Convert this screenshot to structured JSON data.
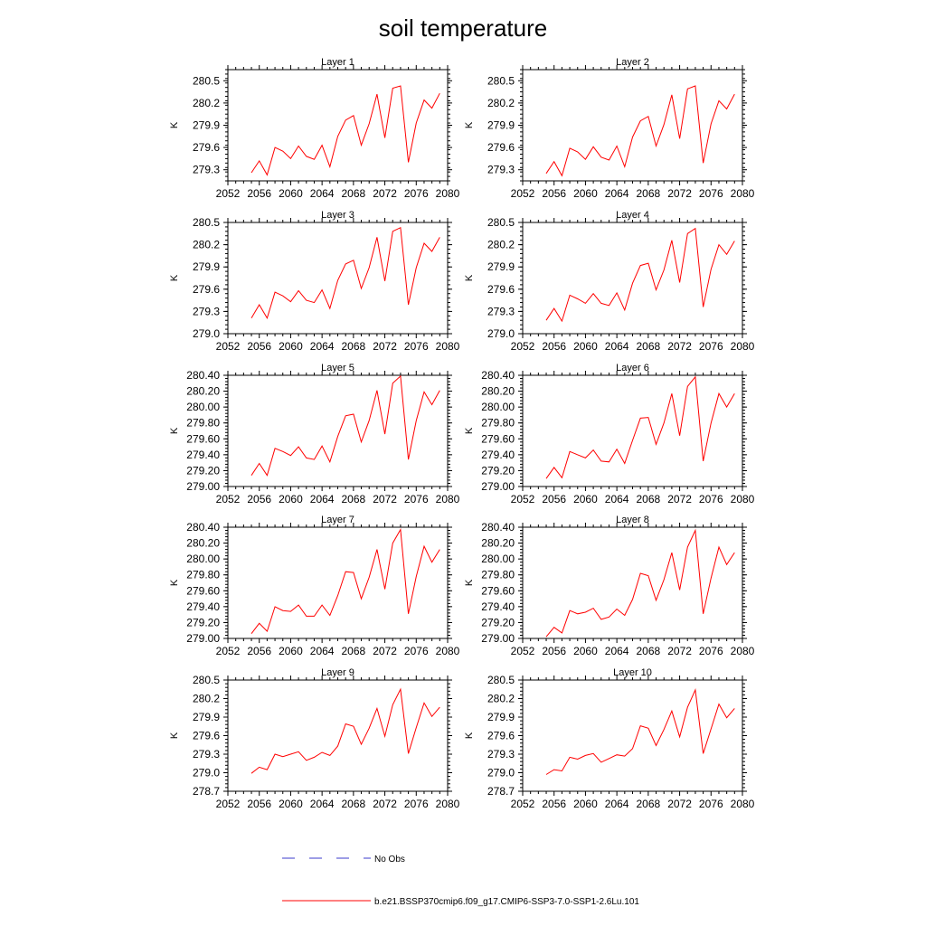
{
  "figure": {
    "title": "soil temperature",
    "legend": [
      {
        "label": "No Obs",
        "color": "#3b3bcc",
        "dash": true
      },
      {
        "label": "b.e21.BSSP370cmip6.f09_g17.CMIP6-SSP3-7.0-SSP1-2.6Lu.101",
        "color": "#ff0000",
        "dash": false
      }
    ]
  },
  "chart_data": [
    {
      "type": "line",
      "title": "Layer 1",
      "xlabel": "",
      "ylabel": "K",
      "xlim": [
        2052,
        2080
      ],
      "ylim": [
        279.15,
        280.65
      ],
      "xticks": [
        "2052",
        "2056",
        "2060",
        "2064",
        "2068",
        "2072",
        "2076",
        "2080"
      ],
      "yticks": [
        "279.3",
        "279.6",
        "279.9",
        "280.2",
        "280.5"
      ],
      "x": [
        2055,
        2056,
        2057,
        2058,
        2059,
        2060,
        2061,
        2062,
        2063,
        2064,
        2065,
        2066,
        2067,
        2068,
        2069,
        2070,
        2071,
        2072,
        2073,
        2074,
        2075,
        2076,
        2077,
        2078,
        2079
      ],
      "series": [
        {
          "name": "b.e21.BSSP370cmip6.f09_g17.CMIP6-SSP3-7.0-SSP1-2.6Lu.101",
          "color": "#ff0000",
          "values": [
            279.26,
            279.42,
            279.23,
            279.6,
            279.55,
            279.45,
            279.62,
            279.48,
            279.44,
            279.63,
            279.34,
            279.75,
            279.97,
            280.03,
            279.63,
            279.92,
            280.32,
            279.73,
            280.4,
            280.43,
            279.4,
            279.93,
            280.24,
            280.13,
            280.33
          ]
        }
      ]
    },
    {
      "type": "line",
      "title": "Layer 2",
      "xlabel": "",
      "ylabel": "K",
      "xlim": [
        2052,
        2080
      ],
      "ylim": [
        279.15,
        280.65
      ],
      "xticks": [
        "2052",
        "2056",
        "2060",
        "2064",
        "2068",
        "2072",
        "2076",
        "2080"
      ],
      "yticks": [
        "279.3",
        "279.6",
        "279.9",
        "280.2",
        "280.5"
      ],
      "x": [
        2055,
        2056,
        2057,
        2058,
        2059,
        2060,
        2061,
        2062,
        2063,
        2064,
        2065,
        2066,
        2067,
        2068,
        2069,
        2070,
        2071,
        2072,
        2073,
        2074,
        2075,
        2076,
        2077,
        2078,
        2079
      ],
      "series": [
        {
          "name": "b.e21.BSSP370cmip6.f09_g17.CMIP6-SSP3-7.0-SSP1-2.6Lu.101",
          "color": "#ff0000",
          "values": [
            279.25,
            279.41,
            279.22,
            279.59,
            279.54,
            279.44,
            279.61,
            279.47,
            279.43,
            279.62,
            279.34,
            279.74,
            279.96,
            280.02,
            279.62,
            279.91,
            280.31,
            279.72,
            280.39,
            280.43,
            279.39,
            279.92,
            280.23,
            280.12,
            280.32
          ]
        }
      ]
    },
    {
      "type": "line",
      "title": "Layer 3",
      "xlabel": "",
      "ylabel": "K",
      "xlim": [
        2052,
        2080
      ],
      "ylim": [
        279.0,
        280.5
      ],
      "xticks": [
        "2052",
        "2056",
        "2060",
        "2064",
        "2068",
        "2072",
        "2076",
        "2080"
      ],
      "yticks": [
        "279.0",
        "279.3",
        "279.6",
        "279.9",
        "280.2",
        "280.5"
      ],
      "x": [
        2055,
        2056,
        2057,
        2058,
        2059,
        2060,
        2061,
        2062,
        2063,
        2064,
        2065,
        2066,
        2067,
        2068,
        2069,
        2070,
        2071,
        2072,
        2073,
        2074,
        2075,
        2076,
        2077,
        2078,
        2079
      ],
      "series": [
        {
          "name": "b.e21.BSSP370cmip6.f09_g17.CMIP6-SSP3-7.0-SSP1-2.6Lu.101",
          "color": "#ff0000",
          "values": [
            279.21,
            279.39,
            279.21,
            279.56,
            279.51,
            279.43,
            279.58,
            279.45,
            279.42,
            279.59,
            279.34,
            279.72,
            279.94,
            279.99,
            279.61,
            279.89,
            280.3,
            279.71,
            280.38,
            280.43,
            279.39,
            279.89,
            280.22,
            280.11,
            280.3
          ]
        }
      ]
    },
    {
      "type": "line",
      "title": "Layer 4",
      "xlabel": "",
      "ylabel": "K",
      "xlim": [
        2052,
        2080
      ],
      "ylim": [
        279.0,
        280.5
      ],
      "xticks": [
        "2052",
        "2056",
        "2060",
        "2064",
        "2068",
        "2072",
        "2076",
        "2080"
      ],
      "yticks": [
        "279.0",
        "279.3",
        "279.6",
        "279.9",
        "280.2",
        "280.5"
      ],
      "x": [
        2055,
        2056,
        2057,
        2058,
        2059,
        2060,
        2061,
        2062,
        2063,
        2064,
        2065,
        2066,
        2067,
        2068,
        2069,
        2070,
        2071,
        2072,
        2073,
        2074,
        2075,
        2076,
        2077,
        2078,
        2079
      ],
      "series": [
        {
          "name": "b.e21.BSSP370cmip6.f09_g17.CMIP6-SSP3-7.0-SSP1-2.6Lu.101",
          "color": "#ff0000",
          "values": [
            279.18,
            279.34,
            279.17,
            279.52,
            279.47,
            279.41,
            279.54,
            279.41,
            279.38,
            279.55,
            279.32,
            279.68,
            279.92,
            279.95,
            279.59,
            279.86,
            280.26,
            279.69,
            280.35,
            280.42,
            279.36,
            279.87,
            280.2,
            280.07,
            280.25
          ]
        }
      ]
    },
    {
      "type": "line",
      "title": "Layer 5",
      "xlabel": "",
      "ylabel": "K",
      "xlim": [
        2052,
        2080
      ],
      "ylim": [
        279.0,
        280.4
      ],
      "xticks": [
        "2052",
        "2056",
        "2060",
        "2064",
        "2068",
        "2072",
        "2076",
        "2080"
      ],
      "yticks": [
        "279.00",
        "279.20",
        "279.40",
        "279.60",
        "279.80",
        "280.00",
        "280.20",
        "280.40"
      ],
      "x": [
        2055,
        2056,
        2057,
        2058,
        2059,
        2060,
        2061,
        2062,
        2063,
        2064,
        2065,
        2066,
        2067,
        2068,
        2069,
        2070,
        2071,
        2072,
        2073,
        2074,
        2075,
        2076,
        2077,
        2078,
        2079
      ],
      "series": [
        {
          "name": "b.e21.BSSP370cmip6.f09_g17.CMIP6-SSP3-7.0-SSP1-2.6Lu.101",
          "color": "#ff0000",
          "values": [
            279.14,
            279.29,
            279.14,
            279.48,
            279.44,
            279.39,
            279.5,
            279.36,
            279.34,
            279.51,
            279.31,
            279.63,
            279.89,
            279.91,
            279.56,
            279.83,
            280.21,
            279.66,
            280.3,
            280.39,
            279.34,
            279.83,
            280.19,
            280.03,
            280.21
          ]
        }
      ]
    },
    {
      "type": "line",
      "title": "Layer 6",
      "xlabel": "",
      "ylabel": "K",
      "xlim": [
        2052,
        2080
      ],
      "ylim": [
        279.0,
        280.4
      ],
      "xticks": [
        "2052",
        "2056",
        "2060",
        "2064",
        "2068",
        "2072",
        "2076",
        "2080"
      ],
      "yticks": [
        "279.00",
        "279.20",
        "279.40",
        "279.60",
        "279.80",
        "280.00",
        "280.20",
        "280.40"
      ],
      "x": [
        2055,
        2056,
        2057,
        2058,
        2059,
        2060,
        2061,
        2062,
        2063,
        2064,
        2065,
        2066,
        2067,
        2068,
        2069,
        2070,
        2071,
        2072,
        2073,
        2074,
        2075,
        2076,
        2077,
        2078,
        2079
      ],
      "series": [
        {
          "name": "b.e21.BSSP370cmip6.f09_g17.CMIP6-SSP3-7.0-SSP1-2.6Lu.101",
          "color": "#ff0000",
          "values": [
            279.1,
            279.24,
            279.11,
            279.44,
            279.4,
            279.36,
            279.46,
            279.32,
            279.31,
            279.47,
            279.29,
            279.58,
            279.86,
            279.87,
            279.53,
            279.8,
            280.17,
            279.64,
            280.26,
            280.38,
            279.32,
            279.8,
            280.17,
            280.0,
            280.17
          ]
        }
      ]
    },
    {
      "type": "line",
      "title": "Layer 7",
      "xlabel": "",
      "ylabel": "K",
      "xlim": [
        2052,
        2080
      ],
      "ylim": [
        279.0,
        280.4
      ],
      "xticks": [
        "2052",
        "2056",
        "2060",
        "2064",
        "2068",
        "2072",
        "2076",
        "2080"
      ],
      "yticks": [
        "279.00",
        "279.20",
        "279.40",
        "279.60",
        "279.80",
        "280.00",
        "280.20",
        "280.40"
      ],
      "x": [
        2055,
        2056,
        2057,
        2058,
        2059,
        2060,
        2061,
        2062,
        2063,
        2064,
        2065,
        2066,
        2067,
        2068,
        2069,
        2070,
        2071,
        2072,
        2073,
        2074,
        2075,
        2076,
        2077,
        2078,
        2079
      ],
      "series": [
        {
          "name": "b.e21.BSSP370cmip6.f09_g17.CMIP6-SSP3-7.0-SSP1-2.6Lu.101",
          "color": "#ff0000",
          "values": [
            279.06,
            279.19,
            279.09,
            279.4,
            279.35,
            279.34,
            279.42,
            279.28,
            279.28,
            279.42,
            279.29,
            279.54,
            279.84,
            279.83,
            279.5,
            279.77,
            280.12,
            279.62,
            280.2,
            280.37,
            279.31,
            279.78,
            280.16,
            279.96,
            280.12
          ]
        }
      ]
    },
    {
      "type": "line",
      "title": "Layer 8",
      "xlabel": "",
      "ylabel": "K",
      "xlim": [
        2052,
        2080
      ],
      "ylim": [
        279.0,
        280.4
      ],
      "xticks": [
        "2052",
        "2056",
        "2060",
        "2064",
        "2068",
        "2072",
        "2076",
        "2080"
      ],
      "yticks": [
        "279.00",
        "279.20",
        "279.40",
        "279.60",
        "279.80",
        "280.00",
        "280.20",
        "280.40"
      ],
      "x": [
        2055,
        2056,
        2057,
        2058,
        2059,
        2060,
        2061,
        2062,
        2063,
        2064,
        2065,
        2066,
        2067,
        2068,
        2069,
        2070,
        2071,
        2072,
        2073,
        2074,
        2075,
        2076,
        2077,
        2078,
        2079
      ],
      "series": [
        {
          "name": "b.e21.BSSP370cmip6.f09_g17.CMIP6-SSP3-7.0-SSP1-2.6Lu.101",
          "color": "#ff0000",
          "values": [
            279.02,
            279.14,
            279.07,
            279.35,
            279.31,
            279.33,
            279.38,
            279.24,
            279.27,
            279.37,
            279.29,
            279.49,
            279.82,
            279.79,
            279.48,
            279.74,
            280.08,
            279.61,
            280.15,
            280.36,
            279.31,
            279.76,
            280.15,
            279.93,
            280.08
          ]
        }
      ]
    },
    {
      "type": "line",
      "title": "Layer 9",
      "xlabel": "",
      "ylabel": "K",
      "xlim": [
        2052,
        2080
      ],
      "ylim": [
        278.7,
        280.5
      ],
      "xticks": [
        "2052",
        "2056",
        "2060",
        "2064",
        "2068",
        "2072",
        "2076",
        "2080"
      ],
      "yticks": [
        "278.7",
        "279.0",
        "279.3",
        "279.6",
        "279.9",
        "280.2",
        "280.5"
      ],
      "x": [
        2055,
        2056,
        2057,
        2058,
        2059,
        2060,
        2061,
        2062,
        2063,
        2064,
        2065,
        2066,
        2067,
        2068,
        2069,
        2070,
        2071,
        2072,
        2073,
        2074,
        2075,
        2076,
        2077,
        2078,
        2079
      ],
      "series": [
        {
          "name": "b.e21.BSSP370cmip6.f09_g17.CMIP6-SSP3-7.0-SSP1-2.6Lu.101",
          "color": "#ff0000",
          "values": [
            278.99,
            279.09,
            279.05,
            279.3,
            279.26,
            279.3,
            279.34,
            279.2,
            279.25,
            279.33,
            279.28,
            279.43,
            279.79,
            279.75,
            279.46,
            279.72,
            280.04,
            279.59,
            280.1,
            280.35,
            279.31,
            279.73,
            280.13,
            279.91,
            280.06
          ]
        }
      ]
    },
    {
      "type": "line",
      "title": "Layer 10",
      "xlabel": "",
      "ylabel": "K",
      "xlim": [
        2052,
        2080
      ],
      "ylim": [
        278.7,
        280.5
      ],
      "xticks": [
        "2052",
        "2056",
        "2060",
        "2064",
        "2068",
        "2072",
        "2076",
        "2080"
      ],
      "yticks": [
        "278.7",
        "279.0",
        "279.3",
        "279.6",
        "279.9",
        "280.2",
        "280.5"
      ],
      "x": [
        2055,
        2056,
        2057,
        2058,
        2059,
        2060,
        2061,
        2062,
        2063,
        2064,
        2065,
        2066,
        2067,
        2068,
        2069,
        2070,
        2071,
        2072,
        2073,
        2074,
        2075,
        2076,
        2077,
        2078,
        2079
      ],
      "series": [
        {
          "name": "b.e21.BSSP370cmip6.f09_g17.CMIP6-SSP3-7.0-SSP1-2.6Lu.101",
          "color": "#ff0000",
          "values": [
            278.97,
            279.05,
            279.03,
            279.25,
            279.22,
            279.28,
            279.31,
            279.17,
            279.23,
            279.29,
            279.27,
            279.39,
            279.76,
            279.72,
            279.44,
            279.7,
            280.0,
            279.58,
            280.06,
            280.34,
            279.31,
            279.71,
            280.11,
            279.89,
            280.04
          ]
        }
      ]
    }
  ]
}
